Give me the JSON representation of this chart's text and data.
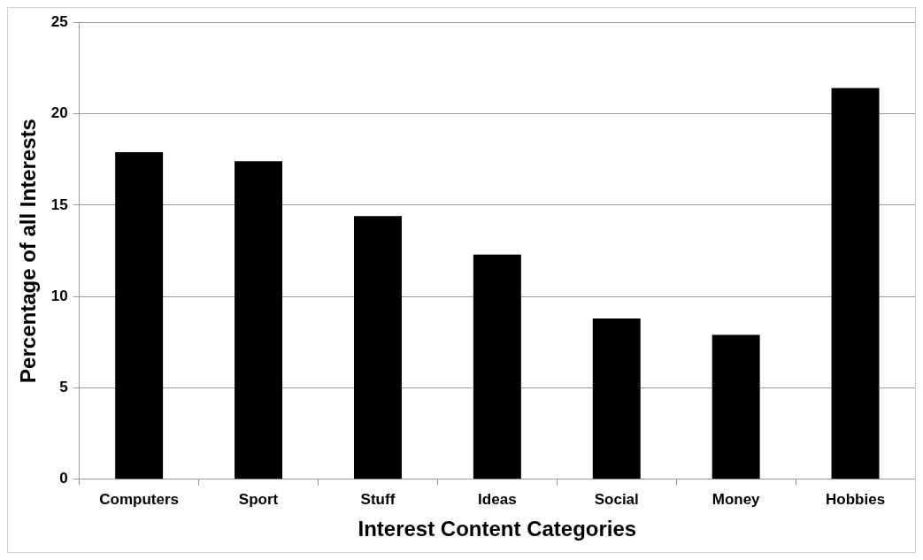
{
  "chart_data": {
    "type": "bar",
    "xlabel": "Interest Content Categories",
    "ylabel": "Percentage of all Interests",
    "categories": [
      "Computers",
      "Sport",
      "Stuff",
      "Ideas",
      "Social",
      "Money",
      "Hobbies"
    ],
    "values": [
      17.9,
      17.4,
      14.4,
      12.3,
      8.8,
      7.9,
      21.4
    ],
    "color": "#000000",
    "ylim": [
      0,
      25
    ],
    "yticks": [
      0,
      5,
      10,
      15,
      20,
      25
    ],
    "grid": "y"
  }
}
